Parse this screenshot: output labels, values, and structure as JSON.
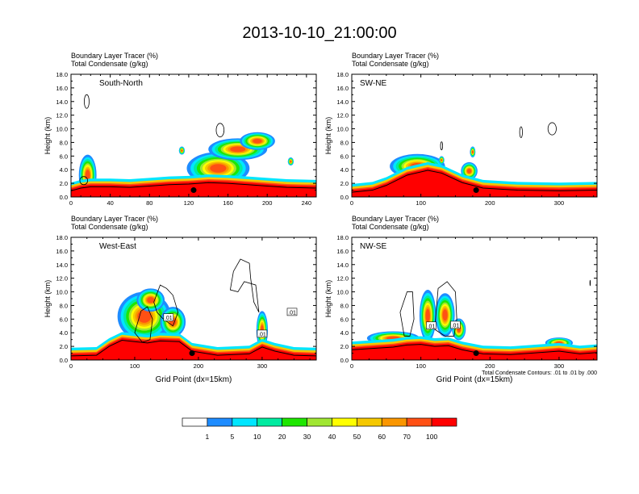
{
  "title": "2013-10-10_21:00:00",
  "colors": {
    "levels": [
      "#ffffff",
      "#1e8cff",
      "#00e6ff",
      "#00eba0",
      "#1ee600",
      "#a0e632",
      "#ffff00",
      "#f5c800",
      "#fa9600",
      "#ff5014",
      "#ff0000"
    ],
    "frame": "#000000",
    "contour": "#000000"
  },
  "chart_data": [
    {
      "type": "heatmap",
      "panel_label": "South-North",
      "annotation_lines": [
        "Boundary Layer Tracer   (%)",
        "Total Condensate   (g/kg)"
      ],
      "ylabel": "Height (km)",
      "xlabel": "",
      "xlim": [
        0,
        250
      ],
      "ylim": [
        0,
        18
      ],
      "xticks": [
        "0",
        "40",
        "80",
        "120",
        "160",
        "200",
        "240"
      ],
      "yticks": [
        "0.0",
        "2.0",
        "4.0",
        "6.0",
        "8.0",
        "10.0",
        "12.0",
        "14.0",
        "16.0",
        "18.0"
      ],
      "footnote": ""
    },
    {
      "type": "heatmap",
      "panel_label": "SW-NE",
      "annotation_lines": [
        "Boundary Layer Tracer   (%)",
        "Total Condensate   (g/kg)"
      ],
      "ylabel": "Height (km)",
      "xlabel": "",
      "xlim": [
        0,
        355
      ],
      "ylim": [
        0,
        18
      ],
      "xticks": [
        "0",
        "100",
        "200",
        "300"
      ],
      "yticks": [
        "0.0",
        "2.0",
        "4.0",
        "6.0",
        "8.0",
        "10.0",
        "12.0",
        "14.0",
        "16.0",
        "18.0"
      ],
      "footnote": ""
    },
    {
      "type": "heatmap",
      "panel_label": "West-East",
      "annotation_lines": [
        "Boundary Layer Tracer   (%)",
        "Total Condensate   (g/kg)"
      ],
      "ylabel": "Height (km)",
      "xlabel": "Grid Point (dx=15km)",
      "xlim": [
        0,
        385
      ],
      "ylim": [
        0,
        18
      ],
      "xticks": [
        "0",
        "100",
        "200",
        "300"
      ],
      "yticks": [
        "0.0",
        "2.0",
        "4.0",
        "6.0",
        "8.0",
        "10.0",
        "12.0",
        "14.0",
        "16.0",
        "18.0"
      ],
      "contour_labels": [
        ".01",
        ".01",
        ".01"
      ],
      "footnote": ""
    },
    {
      "type": "heatmap",
      "panel_label": "NW-SE",
      "annotation_lines": [
        "Boundary Layer Tracer   (%)",
        "Total Condensate   (g/kg)"
      ],
      "ylabel": "Height (km)",
      "xlabel": "Grid Point (dx=15km)",
      "xlim": [
        0,
        355
      ],
      "ylim": [
        0,
        18
      ],
      "xticks": [
        "0",
        "100",
        "200",
        "300"
      ],
      "yticks": [
        "0.0",
        "2.0",
        "4.0",
        "6.0",
        "8.0",
        "10.0",
        "12.0",
        "14.0",
        "16.0",
        "18.0"
      ],
      "contour_labels": [
        ".01",
        ".01"
      ],
      "footnote": "Total Condensate Contours: .01 to .01 by .000"
    }
  ],
  "colorbar": {
    "labels": [
      "1",
      "5",
      "10",
      "20",
      "30",
      "40",
      "50",
      "60",
      "70",
      "100"
    ]
  }
}
